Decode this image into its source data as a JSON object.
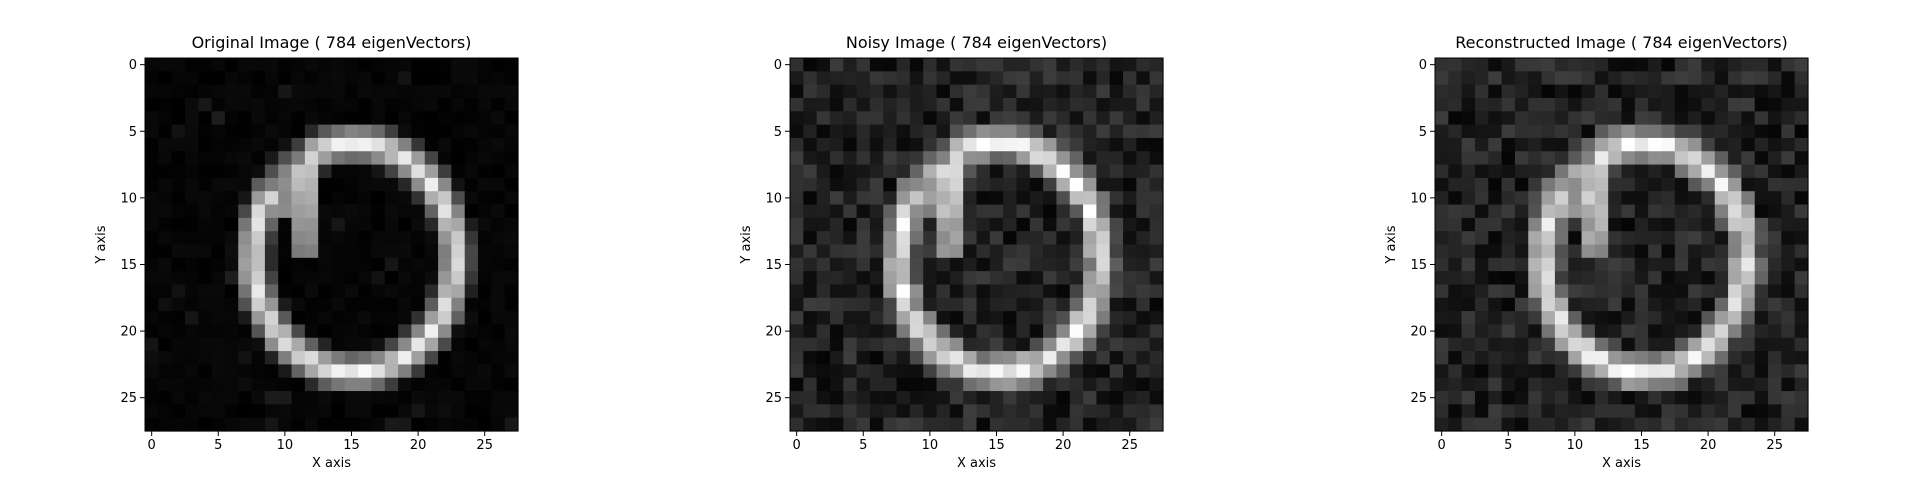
{
  "chart_data": [
    {
      "type": "heatmap",
      "title": "Original Image ( 784 eigenVectors)",
      "xlabel": "X axis",
      "ylabel": "Y axis",
      "xlim": [
        -0.5,
        27.5
      ],
      "ylim": [
        27.5,
        -0.5
      ],
      "x_ticks": [
        0,
        5,
        10,
        15,
        20,
        25
      ],
      "y_ticks": [
        0,
        5,
        10,
        15,
        20,
        25
      ],
      "colormap": "gray",
      "shape": [
        28,
        28
      ],
      "noise_level": 0.0,
      "background_level": 0.02,
      "image_description": "digit 0"
    },
    {
      "type": "heatmap",
      "title": "Noisy Image ( 784 eigenVectors)",
      "xlabel": "X axis",
      "ylabel": "Y axis",
      "xlim": [
        -0.5,
        27.5
      ],
      "ylim": [
        27.5,
        -0.5
      ],
      "x_ticks": [
        0,
        5,
        10,
        15,
        20,
        25
      ],
      "y_ticks": [
        0,
        5,
        10,
        15,
        20,
        25
      ],
      "colormap": "gray",
      "shape": [
        28,
        28
      ],
      "noise_level": 0.09,
      "background_level": 0.13,
      "image_description": "digit 0"
    },
    {
      "type": "heatmap",
      "title": "Reconstructed Image ( 784 eigenVectors)",
      "xlabel": "X axis",
      "ylabel": "Y axis",
      "xlim": [
        -0.5,
        27.5
      ],
      "ylim": [
        27.5,
        -0.5
      ],
      "x_ticks": [
        0,
        5,
        10,
        15,
        20,
        25
      ],
      "y_ticks": [
        0,
        5,
        10,
        15,
        20,
        25
      ],
      "colormap": "gray",
      "shape": [
        28,
        28
      ],
      "noise_level": 0.09,
      "background_level": 0.13,
      "image_description": "digit 0"
    }
  ]
}
